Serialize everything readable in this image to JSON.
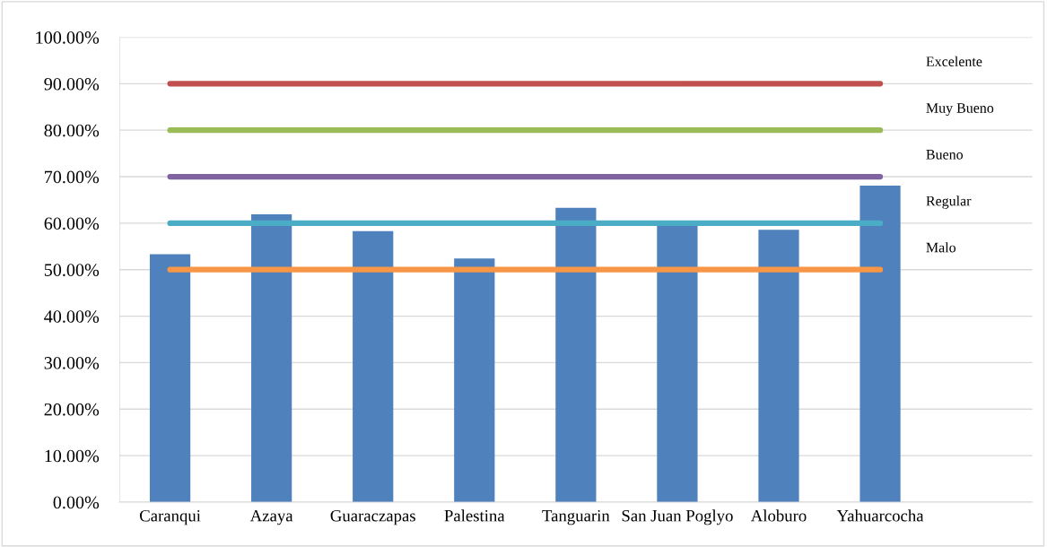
{
  "chart_data": {
    "type": "bar",
    "categories": [
      "Caranqui",
      "Azaya",
      "Guaraczapas",
      "Palestina",
      "Tanguarin",
      "San Juan Poglyo",
      "Aloburo",
      "Yahuarcocha"
    ],
    "series": [
      {
        "color": "#4f81bd",
        "values": [
          53.3,
          61.9,
          58.3,
          52.4,
          63.3,
          60.0,
          58.6,
          68.1
        ]
      },
      {
        "type": "line",
        "name": "Excelente",
        "color": "#c0504d",
        "values": [
          90,
          90,
          90,
          90,
          90,
          90,
          90,
          90
        ]
      },
      {
        "type": "line",
        "name": "Muy Bueno",
        "color": "#9bbb59",
        "values": [
          80,
          80,
          80,
          80,
          80,
          80,
          80,
          80
        ]
      },
      {
        "type": "line",
        "name": "Bueno",
        "color": "#8064a2",
        "values": [
          70,
          70,
          70,
          70,
          70,
          70,
          70,
          70
        ]
      },
      {
        "type": "line",
        "name": "Regular",
        "color": "#4bacc6",
        "values": [
          60,
          60,
          60,
          60,
          60,
          60,
          60,
          60
        ]
      },
      {
        "type": "line",
        "name": "Malo",
        "color": "#f79646",
        "values": [
          50,
          50,
          50,
          50,
          50,
          50,
          50,
          50
        ]
      }
    ],
    "ylim": [
      0,
      100
    ],
    "yticks": [
      {
        "value": 0,
        "label": "0.00%"
      },
      {
        "value": 10,
        "label": "10.00%"
      },
      {
        "value": 20,
        "label": "20.00%"
      },
      {
        "value": 30,
        "label": "30.00%"
      },
      {
        "value": 40,
        "label": "40.00%"
      },
      {
        "value": 50,
        "label": "50.00%"
      },
      {
        "value": 60,
        "label": "60.00%"
      },
      {
        "value": 70,
        "label": "70.00%"
      },
      {
        "value": 80,
        "label": "80.00%"
      },
      {
        "value": 90,
        "label": "90.00%"
      },
      {
        "value": 100,
        "label": "100.00%"
      }
    ],
    "grid": "y",
    "marker": "none",
    "line_style": "solid"
  }
}
